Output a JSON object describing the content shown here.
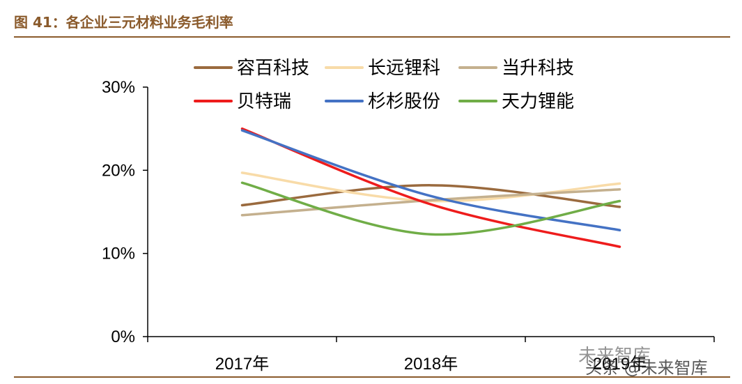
{
  "figure": {
    "title": "图 41：各企业三元材料业务毛利率"
  },
  "watermarks": [
    "未来智库",
    "头条 @未来智库"
  ],
  "chart_data": {
    "type": "line",
    "categories": [
      "2017年",
      "2018年",
      "2019年"
    ],
    "y_ticks": [
      "0%",
      "10%",
      "20%",
      "30%"
    ],
    "ylim": [
      0,
      30
    ],
    "smooth": true,
    "grid": false,
    "legend_position": "top",
    "series": [
      {
        "name": "容百科技",
        "color": "#9a6a3e",
        "values": [
          15.8,
          18.2,
          15.6
        ]
      },
      {
        "name": "长远锂科",
        "color": "#f8dba8",
        "values": [
          19.7,
          16.3,
          18.4
        ]
      },
      {
        "name": "当升科技",
        "color": "#c4b08e",
        "values": [
          14.6,
          16.4,
          17.7
        ]
      },
      {
        "name": "贝特瑞",
        "color": "#ee1c1c",
        "values": [
          25.0,
          15.9,
          10.8
        ]
      },
      {
        "name": "杉杉股份",
        "color": "#4472c4",
        "values": [
          24.8,
          16.9,
          12.8
        ]
      },
      {
        "name": "天力锂能",
        "color": "#70ad47",
        "values": [
          18.5,
          12.3,
          16.3
        ]
      }
    ]
  }
}
